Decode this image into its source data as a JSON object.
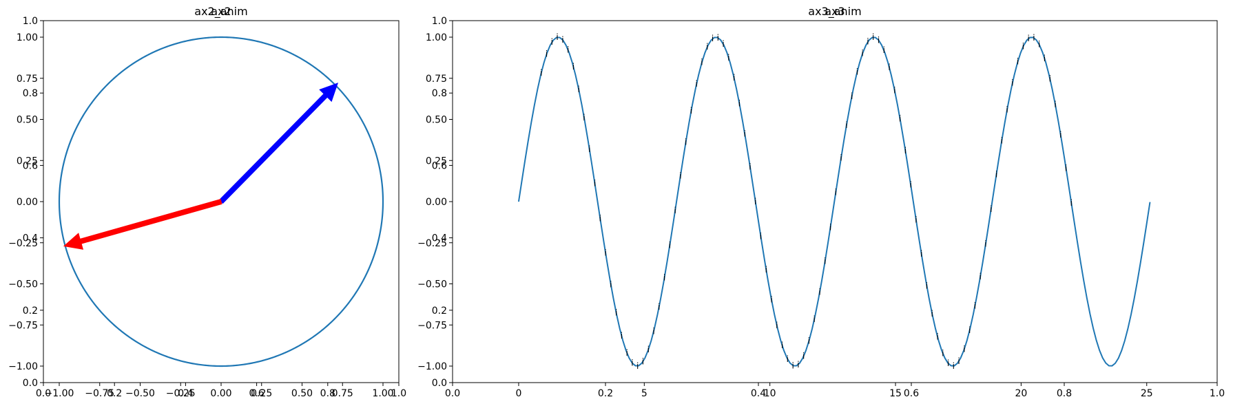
{
  "chart_data": [
    {
      "type": "line",
      "titles": [
        "ax2",
        "ax2_anim"
      ],
      "overlay_axes": {
        "xlim": [
          0.0,
          1.0
        ],
        "ylim": [
          0.0,
          1.0
        ],
        "xticks": [
          "0.0",
          "0.2",
          "0.4",
          "0.6",
          "0.8",
          "1.0"
        ],
        "yticks": [
          "0.0",
          "0.2",
          "0.4",
          "0.6",
          "0.8",
          "1.0"
        ]
      },
      "xlim": [
        -1.0,
        1.0
      ],
      "ylim": [
        -1.0,
        1.0
      ],
      "xticks": [
        "−1.00",
        "−0.75",
        "−0.50",
        "−0.25",
        "0.00",
        "0.25",
        "0.50",
        "0.75",
        "1.00"
      ],
      "yticks": [
        "−1.00",
        "−0.75",
        "−0.50",
        "−0.25",
        "0.00",
        "0.25",
        "0.50",
        "0.75",
        "1.00"
      ],
      "series": [
        {
          "shape": "unit-circle",
          "color": "#1f77b4",
          "radius": 1.0
        }
      ],
      "arrows": [
        {
          "from": [
            0,
            0
          ],
          "to": [
            0.72,
            0.72
          ],
          "color": "#0000ff"
        },
        {
          "from": [
            0,
            0
          ],
          "to": [
            -0.97,
            -0.27
          ],
          "color": "#ff0000"
        }
      ]
    },
    {
      "type": "line",
      "titles": [
        "ax3",
        "ax3_anim"
      ],
      "overlay_axes": {
        "xlim": [
          0.0,
          1.0
        ],
        "ylim": [
          0.0,
          1.0
        ],
        "xticks": [
          "0.0",
          "0.2",
          "0.4",
          "0.6",
          "0.8",
          "1.0"
        ],
        "yticks": [
          "0.0",
          "0.2",
          "0.4",
          "0.6",
          "0.8",
          "1.0"
        ]
      },
      "xlim": [
        -1.26,
        26.46
      ],
      "ylim": [
        -1.0,
        1.0
      ],
      "xticks": [
        "0",
        "5",
        "10",
        "15",
        "20",
        "25"
      ],
      "yticks": [
        "−1.00",
        "−0.75",
        "−0.50",
        "−0.25",
        "0.00",
        "0.25",
        "0.50",
        "0.75",
        "1.00"
      ],
      "series": [
        {
          "function": "sin(x)",
          "x_range": [
            0,
            25.13
          ],
          "color": "#1f77b4"
        }
      ],
      "annotation": {
        "text": "i",
        "x_range": [
          0.9,
          22.0
        ],
        "count": 100
      }
    }
  ]
}
